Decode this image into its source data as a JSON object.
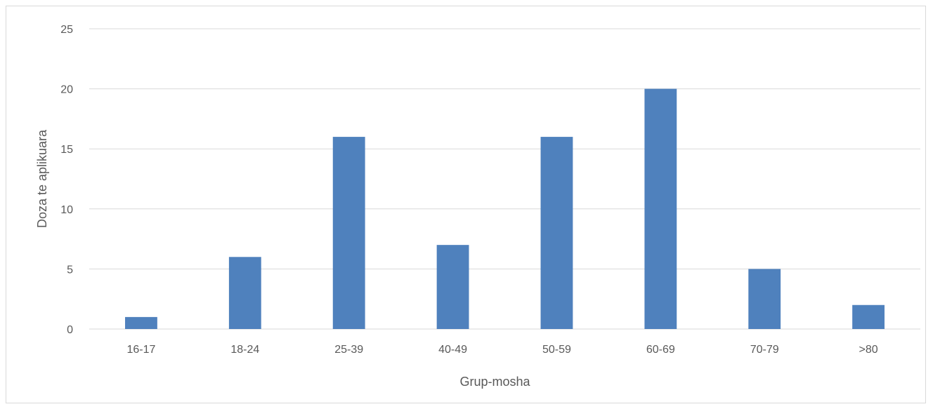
{
  "chart_data": {
    "type": "bar",
    "title": "",
    "xlabel": "Grup-mosha",
    "ylabel": "Doza te aplikuara",
    "categories": [
      "16-17",
      "18-24",
      "25-39",
      "40-49",
      "50-59",
      "60-69",
      "70-79",
      ">80"
    ],
    "values": [
      1,
      6,
      16,
      7,
      16,
      20,
      5,
      2
    ],
    "ylim": [
      0,
      25
    ],
    "yticks": [
      "0",
      "5",
      "10",
      "15",
      "20",
      "25"
    ],
    "grid": true,
    "legend": "none",
    "colors": {
      "bar": "#4f81bd",
      "grid": "#d9d9d9",
      "text": "#595959"
    }
  }
}
